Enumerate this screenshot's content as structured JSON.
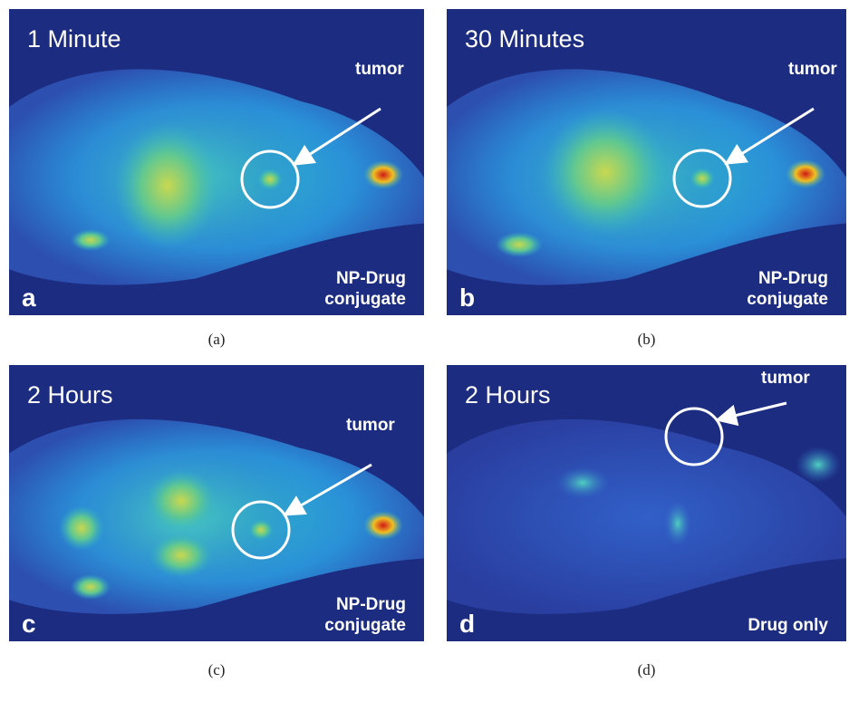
{
  "panels": [
    {
      "time": "1 Minute",
      "tumor": "tumor",
      "letter": "a",
      "agent": [
        "NP-Drug",
        "conjugate"
      ],
      "caption": "(a)"
    },
    {
      "time": "30 Minutes",
      "tumor": "tumor",
      "letter": "b",
      "agent": [
        "NP-Drug",
        "conjugate"
      ],
      "caption": "(b)"
    },
    {
      "time": "2 Hours",
      "tumor": "tumor",
      "letter": "c",
      "agent": [
        "NP-Drug",
        "conjugate"
      ],
      "caption": "(c)"
    },
    {
      "time": "2 Hours",
      "tumor": "tumor",
      "letter": "d",
      "agent": [
        "Drug only"
      ],
      "caption": "(d)"
    }
  ]
}
